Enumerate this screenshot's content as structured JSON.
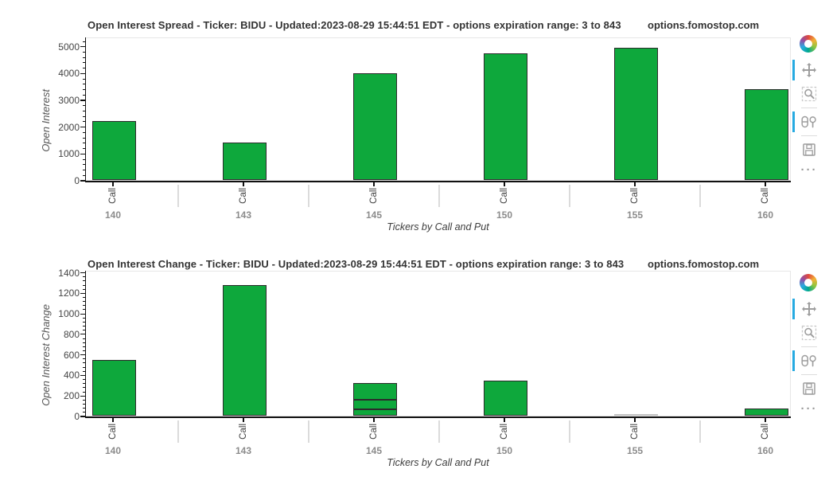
{
  "colors": {
    "bar_fill": "#0ea83c",
    "bar_border": "#2b2b2b",
    "muted_bar_fill": "#d6d6d6",
    "muted_bar_border": "#c3c3c3",
    "toolbar_active_indicator": "#26aae1",
    "axis": "#111111",
    "group_separator": "#dbdbdb"
  },
  "toolbar": {
    "tools": [
      {
        "id": "bokeh-logo",
        "type": "logo"
      },
      {
        "id": "pan-tool",
        "type": "pan",
        "active": true
      },
      {
        "id": "box-zoom-tool",
        "type": "box-zoom",
        "active": false,
        "sep_after": true
      },
      {
        "id": "wheel-zoom-tool",
        "type": "wheel-zoom",
        "active": true,
        "sep_after": true
      },
      {
        "id": "save-tool",
        "type": "save",
        "active": false
      },
      {
        "id": "overflow-menu",
        "type": "dots",
        "label": "···"
      }
    ]
  },
  "chart_data": [
    {
      "type": "bar",
      "title": "Open Interest Spread - Ticker: BIDU - Updated:2023-08-29 15:44:51 EDT - options expiration range: 3 to 843",
      "watermark": "options.fomostop.com",
      "ylabel": "Open Interest",
      "xlabel": "Tickers by Call and Put",
      "sub_category_label": "Call",
      "groups": [
        "140",
        "143",
        "145",
        "150",
        "155",
        "160"
      ],
      "y_ticks": [
        0,
        1000,
        2000,
        3000,
        4000,
        5000
      ],
      "ylim": [
        0,
        5350
      ],
      "grid": false,
      "legend": "none",
      "bars": [
        {
          "group": "140",
          "sub": "Call",
          "segments": [
            2190
          ]
        },
        {
          "group": "143",
          "sub": "Call",
          "segments": [
            1400
          ]
        },
        {
          "group": "145",
          "sub": "Call",
          "segments": [
            3990
          ]
        },
        {
          "group": "150",
          "sub": "Call",
          "segments": [
            4720
          ]
        },
        {
          "group": "155",
          "sub": "Call",
          "segments": [
            4930
          ]
        },
        {
          "group": "160",
          "sub": "Call",
          "segments": [
            3400
          ]
        }
      ]
    },
    {
      "type": "bar",
      "title": "Open Interest Change - Ticker: BIDU - Updated:2023-08-29 15:44:51 EDT - options expiration range: 3 to 843",
      "watermark": "options.fomostop.com",
      "ylabel": "Open Interest Change",
      "xlabel": "Tickers by Call and Put",
      "sub_category_label": "Call",
      "groups": [
        "140",
        "143",
        "145",
        "150",
        "155",
        "160"
      ],
      "y_ticks": [
        0,
        200,
        400,
        600,
        800,
        1000,
        1200,
        1400
      ],
      "ylim": [
        0,
        1420
      ],
      "grid": false,
      "legend": "none",
      "bars": [
        {
          "group": "140",
          "sub": "Call",
          "segments": [
            540
          ]
        },
        {
          "group": "143",
          "sub": "Call",
          "segments": [
            1275
          ]
        },
        {
          "group": "145",
          "sub": "Call",
          "segments": [
            60,
            95,
            165
          ]
        },
        {
          "group": "150",
          "sub": "Call",
          "segments": [
            340
          ]
        },
        {
          "group": "155",
          "sub": "Call",
          "segments": [
            15
          ],
          "muted": true
        },
        {
          "group": "160",
          "sub": "Call",
          "segments": [
            70
          ]
        }
      ]
    }
  ]
}
